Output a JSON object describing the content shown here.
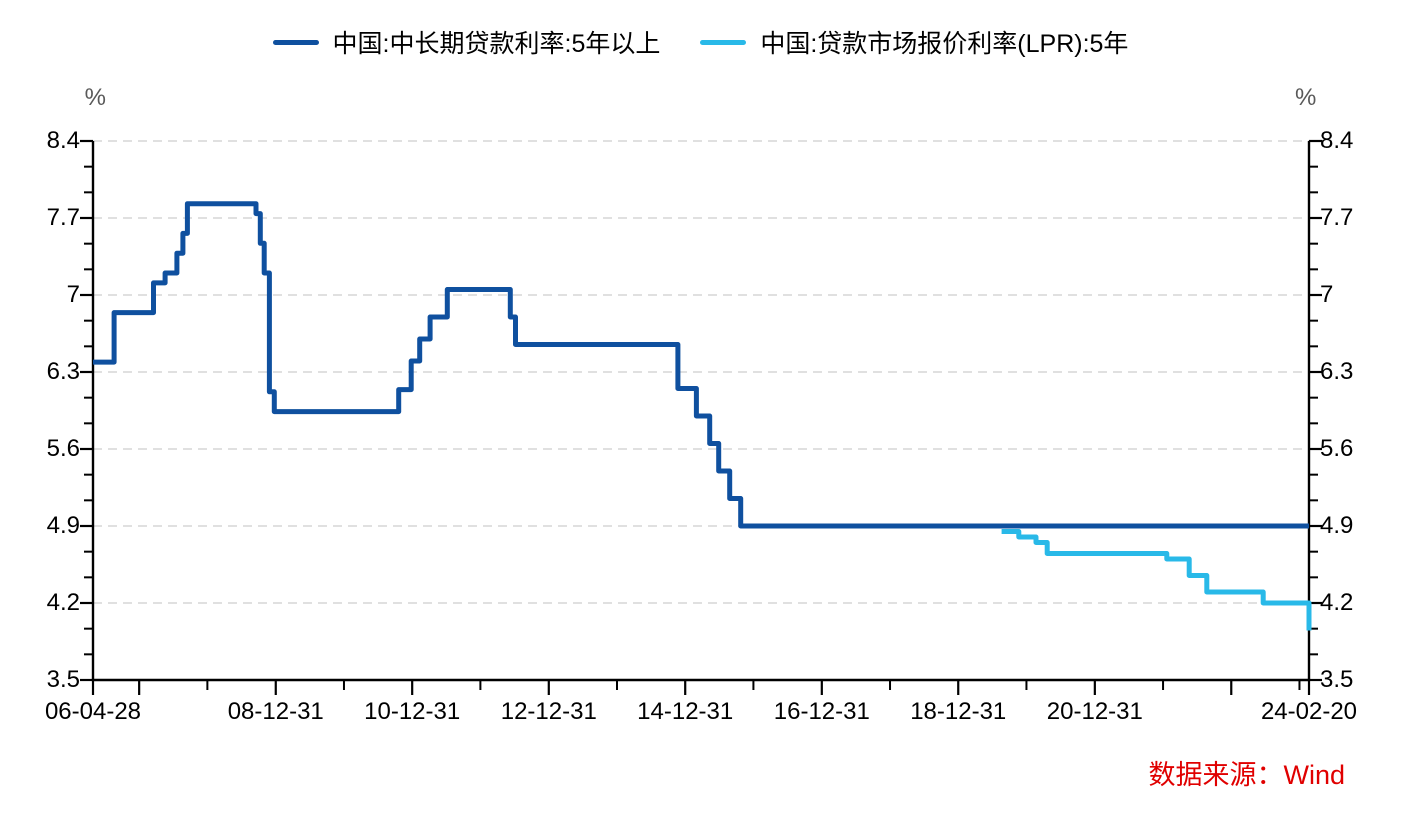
{
  "chart": {
    "legend": [
      {
        "label": "中国:中长期贷款利率:5年以上",
        "color": "#0F509F"
      },
      {
        "label": "中国:贷款市场报价利率(LPR):5年",
        "color": "#29B9E8"
      }
    ],
    "unit_left": "%",
    "unit_right": "%",
    "source": "数据来源：Wind",
    "colors": {
      "axis": "#000000",
      "gridline": "#D6D6D6",
      "tick_label": "#000000",
      "unit_label": "#595959",
      "source_text": "#E00000"
    }
  },
  "chart_data": {
    "type": "line",
    "step": "after",
    "title": "",
    "ylabel": "%",
    "ylim": [
      3.5,
      8.4
    ],
    "grid": "horizontal-dashed",
    "legend_position": "top-center",
    "y_ticks": [
      {
        "value": 8.4,
        "label": "8.4"
      },
      {
        "value": 7.7,
        "label": "7.7"
      },
      {
        "value": 7.0,
        "label": "7"
      },
      {
        "value": 6.3,
        "label": "6.3"
      },
      {
        "value": 5.6,
        "label": "5.6"
      },
      {
        "value": 4.9,
        "label": "4.9"
      },
      {
        "value": 4.2,
        "label": "4.2"
      },
      {
        "value": 3.5,
        "label": "3.5"
      }
    ],
    "y_minor_ticks_per_interval": 2,
    "x_range": [
      "2006-04-28",
      "2024-02-20"
    ],
    "x_labeled_ticks": [
      {
        "date": "2006-04-28",
        "label": "06-04-28"
      },
      {
        "date": "2008-12-31",
        "label": "08-12-31"
      },
      {
        "date": "2010-12-31",
        "label": "10-12-31"
      },
      {
        "date": "2012-12-31",
        "label": "12-12-31"
      },
      {
        "date": "2014-12-31",
        "label": "14-12-31"
      },
      {
        "date": "2016-12-31",
        "label": "16-12-31"
      },
      {
        "date": "2018-12-31",
        "label": "18-12-31"
      },
      {
        "date": "2020-12-31",
        "label": "20-12-31"
      },
      {
        "date": "2024-02-20",
        "label": "24-02-20"
      }
    ],
    "x_long_ticks": [
      "2006-04-28",
      "2006-12-31",
      "2008-12-31",
      "2010-12-31",
      "2012-12-31",
      "2014-12-31",
      "2016-12-31",
      "2018-12-31",
      "2020-12-31",
      "2022-12-31",
      "2024-02-20"
    ],
    "x_short_ticks": [
      "2007-12-31",
      "2009-12-31",
      "2011-12-31",
      "2013-12-31",
      "2015-12-31",
      "2017-12-31",
      "2019-12-31",
      "2021-12-31",
      "2023-12-31"
    ],
    "series": [
      {
        "name": "中国:中长期贷款利率:5年以上",
        "color": "#0F509F",
        "points": [
          [
            "2006-04-28",
            6.39
          ],
          [
            "2006-08-19",
            6.84
          ],
          [
            "2007-03-18",
            7.11
          ],
          [
            "2007-05-19",
            7.2
          ],
          [
            "2007-07-21",
            7.38
          ],
          [
            "2007-08-22",
            7.56
          ],
          [
            "2007-09-15",
            7.83
          ],
          [
            "2008-09-16",
            7.74
          ],
          [
            "2008-10-09",
            7.47
          ],
          [
            "2008-10-30",
            7.2
          ],
          [
            "2008-11-27",
            6.12
          ],
          [
            "2008-12-23",
            5.94
          ],
          [
            "2010-10-20",
            6.14
          ],
          [
            "2010-12-26",
            6.4
          ],
          [
            "2011-02-09",
            6.6
          ],
          [
            "2011-04-06",
            6.8
          ],
          [
            "2011-07-07",
            7.05
          ],
          [
            "2012-06-08",
            6.8
          ],
          [
            "2012-07-06",
            6.55
          ],
          [
            "2014-11-22",
            6.15
          ],
          [
            "2015-03-01",
            5.9
          ],
          [
            "2015-05-11",
            5.65
          ],
          [
            "2015-06-28",
            5.4
          ],
          [
            "2015-08-26",
            5.15
          ],
          [
            "2015-10-24",
            4.9
          ],
          [
            "2024-02-20",
            4.9
          ]
        ]
      },
      {
        "name": "中国:贷款市场报价利率(LPR):5年",
        "color": "#29B9E8",
        "points": [
          [
            "2019-08-20",
            4.85
          ],
          [
            "2019-11-20",
            4.8
          ],
          [
            "2020-02-20",
            4.75
          ],
          [
            "2020-04-20",
            4.65
          ],
          [
            "2022-01-20",
            4.6
          ],
          [
            "2022-05-20",
            4.45
          ],
          [
            "2022-08-22",
            4.3
          ],
          [
            "2023-06-20",
            4.2
          ],
          [
            "2024-02-20",
            3.95
          ]
        ]
      }
    ]
  }
}
